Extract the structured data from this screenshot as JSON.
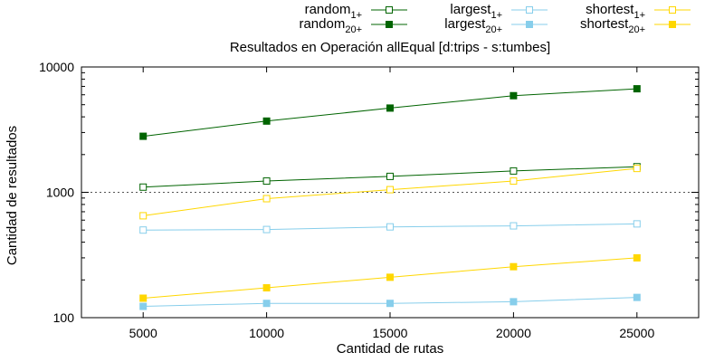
{
  "chart_data": {
    "type": "line",
    "title": "Resultados en Operación allEqual [d:trips - s:tumbes]",
    "xlabel": "Cantidad de rutas",
    "ylabel": "Cantidad de resultados",
    "x": [
      5000,
      10000,
      15000,
      20000,
      25000
    ],
    "x_ticks": [
      5000,
      10000,
      15000,
      20000,
      25000
    ],
    "xlim": [
      2500,
      27500
    ],
    "y_scale": "log",
    "ylim": [
      100,
      10000
    ],
    "y_ticks": [
      100,
      1000,
      10000
    ],
    "reference_line": {
      "y": 1000,
      "style": "dotted"
    },
    "grid": false,
    "legend_position": "top",
    "series": [
      {
        "name": "random",
        "sub": "1+",
        "color": "#006400",
        "marker": "square-open",
        "values": [
          1100,
          1230,
          1340,
          1480,
          1600
        ]
      },
      {
        "name": "random",
        "sub": "20+",
        "color": "#006400",
        "marker": "square-filled",
        "values": [
          2800,
          3700,
          4700,
          5900,
          6700
        ]
      },
      {
        "name": "largest",
        "sub": "1+",
        "color": "#87ceeb",
        "marker": "square-open",
        "values": [
          500,
          505,
          530,
          540,
          560
        ]
      },
      {
        "name": "largest",
        "sub": "20+",
        "color": "#87ceeb",
        "marker": "square-filled",
        "values": [
          123,
          130,
          130,
          134,
          145
        ]
      },
      {
        "name": "shortest",
        "sub": "1+",
        "color": "#ffd700",
        "marker": "square-open",
        "values": [
          650,
          890,
          1050,
          1230,
          1550
        ]
      },
      {
        "name": "shortest",
        "sub": "20+",
        "color": "#ffd700",
        "marker": "square-filled",
        "values": [
          143,
          173,
          210,
          255,
          300
        ]
      }
    ]
  }
}
